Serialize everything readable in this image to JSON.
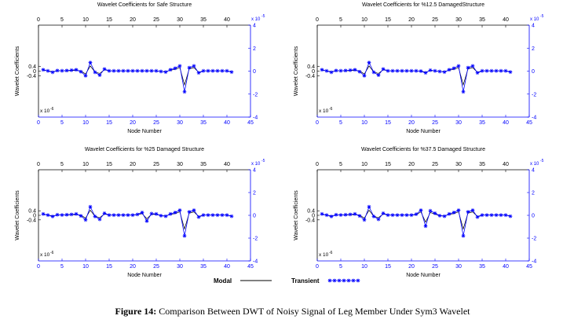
{
  "figure": {
    "caption_label": "Figure 14:",
    "caption_text": " Comparison Between DWT of Noisy Signal of Leg Member Under Sym3 Wavelet"
  },
  "legend": {
    "modal_label": "Modal",
    "transient_label": "Transient",
    "modal_color": "#000000",
    "transient_color": "#0000ff"
  },
  "chart_data": [
    {
      "type": "line",
      "title": "Wavelet Coefficients for Safe Structure",
      "xlabel": "Node Number",
      "ylabel": "Wavelet Coefficients",
      "xlim": [
        0,
        45
      ],
      "x_ticks": [
        0,
        5,
        10,
        15,
        20,
        25,
        30,
        35,
        40,
        45
      ],
      "left_ylim": [
        -4,
        4
      ],
      "left_yticks": [
        -0.4,
        0,
        0.4
      ],
      "left_multiplier": "x 10",
      "left_exponent": "-6",
      "right_ylim": [
        -4,
        4
      ],
      "right_yticks": [
        -4,
        -2,
        0,
        2,
        4
      ],
      "right_multiplier": "x 10",
      "right_exponent": "-5",
      "top_ticks": [
        0,
        5,
        10,
        15,
        20,
        25,
        30,
        35,
        40
      ],
      "series": [
        {
          "name": "Modal",
          "x": [
            1,
            2,
            3,
            4,
            5,
            6,
            7,
            8,
            9,
            10,
            11,
            12,
            13,
            14,
            15,
            16,
            17,
            18,
            19,
            20,
            21,
            22,
            23,
            24,
            25,
            26,
            27,
            28,
            29,
            30,
            31,
            32,
            33,
            34,
            35,
            36,
            37,
            38,
            39,
            40,
            41
          ],
          "y": [
            0.08,
            0.02,
            -0.05,
            0.02,
            0.02,
            0.02,
            0.05,
            0.07,
            0.02,
            -0.25,
            0.45,
            -0.08,
            -0.2,
            0.12,
            0.02,
            0.02,
            0.02,
            0.02,
            0.02,
            0.02,
            0.02,
            0.02,
            0.02,
            0.02,
            0.02,
            -0.02,
            -0.05,
            0.08,
            0.15,
            0.3,
            -1.2,
            0.2,
            0.3,
            -0.1,
            0.02,
            0.02,
            0.02,
            0.02,
            0.02,
            0.02,
            -0.05
          ]
        },
        {
          "name": "Transient",
          "x": [
            1,
            2,
            3,
            4,
            5,
            6,
            7,
            8,
            9,
            10,
            11,
            12,
            13,
            14,
            15,
            16,
            17,
            18,
            19,
            20,
            21,
            22,
            23,
            24,
            25,
            26,
            27,
            28,
            29,
            30,
            31,
            32,
            33,
            34,
            35,
            36,
            37,
            38,
            39,
            40,
            41
          ],
          "y": [
            0.12,
            0.02,
            -0.1,
            0.05,
            0.03,
            0.05,
            0.08,
            0.12,
            -0.05,
            -0.4,
            0.75,
            -0.1,
            -0.35,
            0.18,
            0.02,
            0.02,
            0.02,
            0.02,
            0.02,
            0.02,
            0.02,
            0.02,
            0.02,
            0.02,
            0.02,
            -0.03,
            -0.08,
            0.12,
            0.25,
            0.45,
            -1.8,
            0.3,
            0.45,
            -0.15,
            0.02,
            0.02,
            0.02,
            0.02,
            0.02,
            0.02,
            -0.08
          ]
        }
      ]
    },
    {
      "type": "line",
      "title": "Wavelet Coefficients for %12.5 DamagedStructure",
      "xlabel": "Node Number",
      "ylabel": "Wavelet Coefficients",
      "xlim": [
        0,
        45
      ],
      "x_ticks": [
        0,
        5,
        10,
        15,
        20,
        25,
        30,
        35,
        40,
        45
      ],
      "left_ylim": [
        -4,
        4
      ],
      "left_yticks": [
        -0.4,
        0,
        0.4
      ],
      "left_multiplier": "x 10",
      "left_exponent": "-6",
      "right_ylim": [
        -4,
        4
      ],
      "right_yticks": [
        -4,
        -2,
        0,
        2,
        4
      ],
      "right_multiplier": "x 10",
      "right_exponent": "-5",
      "top_ticks": [
        0,
        5,
        10,
        15,
        20,
        25,
        30,
        35,
        40
      ],
      "series": [
        {
          "name": "Modal",
          "x": [
            1,
            2,
            3,
            4,
            5,
            6,
            7,
            8,
            9,
            10,
            11,
            12,
            13,
            14,
            15,
            16,
            17,
            18,
            19,
            20,
            21,
            22,
            23,
            24,
            25,
            26,
            27,
            28,
            29,
            30,
            31,
            32,
            33,
            34,
            35,
            36,
            37,
            38,
            39,
            40,
            41
          ],
          "y": [
            0.08,
            0.02,
            -0.05,
            0.02,
            0.02,
            0.02,
            0.05,
            0.07,
            0.02,
            -0.25,
            0.45,
            -0.08,
            -0.2,
            0.12,
            0.02,
            0.02,
            0.02,
            0.02,
            0.02,
            0.02,
            0.02,
            0.0,
            -0.1,
            0.05,
            0.02,
            -0.02,
            -0.05,
            0.08,
            0.15,
            0.3,
            -1.2,
            0.2,
            0.3,
            -0.1,
            0.02,
            0.02,
            0.02,
            0.02,
            0.02,
            0.02,
            -0.05
          ]
        },
        {
          "name": "Transient",
          "x": [
            1,
            2,
            3,
            4,
            5,
            6,
            7,
            8,
            9,
            10,
            11,
            12,
            13,
            14,
            15,
            16,
            17,
            18,
            19,
            20,
            21,
            22,
            23,
            24,
            25,
            26,
            27,
            28,
            29,
            30,
            31,
            32,
            33,
            34,
            35,
            36,
            37,
            38,
            39,
            40,
            41
          ],
          "y": [
            0.12,
            0.02,
            -0.1,
            0.05,
            0.03,
            0.05,
            0.08,
            0.12,
            -0.05,
            -0.4,
            0.75,
            -0.1,
            -0.35,
            0.18,
            0.02,
            0.02,
            0.02,
            0.02,
            0.02,
            0.02,
            0.02,
            0.0,
            -0.15,
            0.08,
            0.02,
            -0.03,
            -0.08,
            0.12,
            0.25,
            0.45,
            -1.8,
            0.3,
            0.45,
            -0.15,
            0.02,
            0.02,
            0.02,
            0.02,
            0.02,
            0.02,
            -0.08
          ]
        }
      ]
    },
    {
      "type": "line",
      "title": "Wavelet Coefficients for %25 Damaged Structure",
      "xlabel": "Node Number",
      "ylabel": "Wavelet Coefficients",
      "xlim": [
        0,
        45
      ],
      "x_ticks": [
        0,
        5,
        10,
        15,
        20,
        25,
        30,
        35,
        40,
        45
      ],
      "left_ylim": [
        -4,
        4
      ],
      "left_yticks": [
        -0.4,
        0,
        0.4
      ],
      "left_multiplier": "x 10",
      "left_exponent": "-6",
      "right_ylim": [
        -4,
        4
      ],
      "right_yticks": [
        -4,
        -2,
        0,
        2,
        4
      ],
      "right_multiplier": "x 10",
      "right_exponent": "-5",
      "top_ticks": [
        0,
        5,
        10,
        15,
        20,
        25,
        30,
        35,
        40
      ],
      "series": [
        {
          "name": "Modal",
          "x": [
            1,
            2,
            3,
            4,
            5,
            6,
            7,
            8,
            9,
            10,
            11,
            12,
            13,
            14,
            15,
            16,
            17,
            18,
            19,
            20,
            21,
            22,
            23,
            24,
            25,
            26,
            27,
            28,
            29,
            30,
            31,
            32,
            33,
            34,
            35,
            36,
            37,
            38,
            39,
            40,
            41
          ],
          "y": [
            0.08,
            0.02,
            -0.05,
            0.02,
            0.02,
            0.02,
            0.05,
            0.07,
            0.02,
            -0.25,
            0.45,
            -0.08,
            -0.2,
            0.12,
            0.02,
            0.02,
            0.02,
            0.02,
            0.02,
            0.02,
            0.05,
            0.15,
            -0.3,
            0.1,
            0.08,
            -0.02,
            -0.05,
            0.08,
            0.15,
            0.3,
            -1.2,
            0.2,
            0.3,
            -0.1,
            0.02,
            0.02,
            0.02,
            0.02,
            0.02,
            0.02,
            -0.05
          ]
        },
        {
          "name": "Transient",
          "x": [
            1,
            2,
            3,
            4,
            5,
            6,
            7,
            8,
            9,
            10,
            11,
            12,
            13,
            14,
            15,
            16,
            17,
            18,
            19,
            20,
            21,
            22,
            23,
            24,
            25,
            26,
            27,
            28,
            29,
            30,
            31,
            32,
            33,
            34,
            35,
            36,
            37,
            38,
            39,
            40,
            41
          ],
          "y": [
            0.12,
            0.02,
            -0.1,
            0.05,
            0.03,
            0.05,
            0.08,
            0.12,
            -0.05,
            -0.4,
            0.75,
            -0.1,
            -0.35,
            0.18,
            0.02,
            0.02,
            0.02,
            0.02,
            0.02,
            0.02,
            0.08,
            0.25,
            -0.5,
            0.15,
            0.12,
            -0.03,
            -0.08,
            0.12,
            0.25,
            0.45,
            -1.8,
            0.3,
            0.45,
            -0.15,
            0.02,
            0.02,
            0.02,
            0.02,
            0.02,
            0.02,
            -0.08
          ]
        }
      ]
    },
    {
      "type": "line",
      "title": "Wavelet Coefficients for %37.5 Damaged Structure",
      "xlabel": "Node Number",
      "ylabel": "Wavelet Coefficients",
      "xlim": [
        0,
        45
      ],
      "x_ticks": [
        0,
        5,
        10,
        15,
        20,
        25,
        30,
        35,
        40,
        45
      ],
      "left_ylim": [
        -4,
        4
      ],
      "left_yticks": [
        -0.4,
        0,
        0.4
      ],
      "left_multiplier": "x 10",
      "left_exponent": "-6",
      "right_ylim": [
        -4,
        4
      ],
      "right_yticks": [
        -4,
        -2,
        0,
        2,
        4
      ],
      "right_multiplier": "x 10",
      "right_exponent": "-5",
      "top_ticks": [
        0,
        5,
        10,
        15,
        20,
        25,
        30,
        35,
        40
      ],
      "series": [
        {
          "name": "Modal",
          "x": [
            1,
            2,
            3,
            4,
            5,
            6,
            7,
            8,
            9,
            10,
            11,
            12,
            13,
            14,
            15,
            16,
            17,
            18,
            19,
            20,
            21,
            22,
            23,
            24,
            25,
            26,
            27,
            28,
            29,
            30,
            31,
            32,
            33,
            34,
            35,
            36,
            37,
            38,
            39,
            40,
            41
          ],
          "y": [
            0.08,
            0.02,
            -0.05,
            0.02,
            0.02,
            0.02,
            0.05,
            0.07,
            0.02,
            -0.25,
            0.45,
            -0.08,
            -0.2,
            0.12,
            0.02,
            0.02,
            0.02,
            0.02,
            0.02,
            0.02,
            0.05,
            0.3,
            -0.6,
            0.25,
            0.1,
            -0.02,
            -0.05,
            0.08,
            0.15,
            0.3,
            -1.2,
            0.2,
            0.3,
            -0.1,
            0.02,
            0.02,
            0.02,
            0.02,
            0.02,
            0.02,
            -0.05
          ]
        },
        {
          "name": "Transient",
          "x": [
            1,
            2,
            3,
            4,
            5,
            6,
            7,
            8,
            9,
            10,
            11,
            12,
            13,
            14,
            15,
            16,
            17,
            18,
            19,
            20,
            21,
            22,
            23,
            24,
            25,
            26,
            27,
            28,
            29,
            30,
            31,
            32,
            33,
            34,
            35,
            36,
            37,
            38,
            39,
            40,
            41
          ],
          "y": [
            0.12,
            0.02,
            -0.1,
            0.05,
            0.03,
            0.05,
            0.08,
            0.12,
            -0.05,
            -0.4,
            0.75,
            -0.1,
            -0.35,
            0.18,
            0.02,
            0.02,
            0.02,
            0.02,
            0.02,
            0.02,
            0.1,
            0.45,
            -0.95,
            0.4,
            0.18,
            -0.03,
            -0.08,
            0.12,
            0.25,
            0.45,
            -1.8,
            0.3,
            0.45,
            -0.15,
            0.02,
            0.02,
            0.02,
            0.02,
            0.02,
            0.02,
            -0.08
          ]
        }
      ]
    }
  ]
}
